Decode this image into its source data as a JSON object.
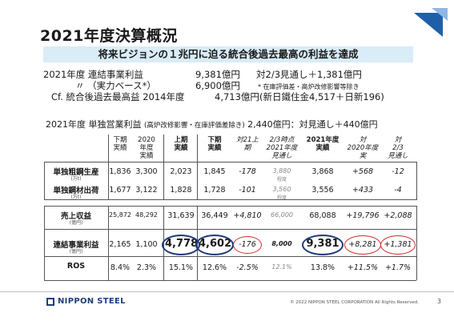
{
  "title": "2021年度決算概況",
  "banner": "将来ビジョンの１兆円に迫る統合後過去最高の利益を達成",
  "summary": {
    "row1": {
      "label": "2021年度 連結事業利益",
      "value": "9,381億円",
      "note": "対2/3見通し＋1,381億円"
    },
    "row2": {
      "label": "〃 （実力ベース*）",
      "value": "6,900億円",
      "note": "* 在庫評価差・高炉改修影響等除き"
    },
    "row3": {
      "label": "Cf. 統合後過去最高益 2014年度",
      "value": "4,713億円",
      "note": "(新日鐵住金4,517＋日新196)"
    }
  },
  "standalone": {
    "label": "2021年度 単独営業利益",
    "sub": "(高炉改修影響・在庫評価差除き)",
    "value": "2,440億円：対見通し＋440億円"
  },
  "table": {
    "headers": {
      "h1": [
        "下期",
        "実績"
      ],
      "h2": [
        "2020",
        "年度",
        "実績"
      ],
      "h3": [
        "上期",
        "実績"
      ],
      "h4": [
        "下期",
        "実績"
      ],
      "h5": [
        "対21上",
        "期"
      ],
      "h6": [
        "2/3時点",
        "2021年度",
        "見通し"
      ],
      "h7": [
        "2021年度",
        "実績"
      ],
      "h8": [
        "対",
        "2020年度",
        "実"
      ],
      "h9": [
        "対",
        "2/3",
        "見通し"
      ]
    },
    "rows": [
      {
        "label": "単独粗鋼生産",
        "unit": "(万t)",
        "values": [
          "1,836",
          "3,300",
          "2,023",
          "1,845",
          "-178",
          "3,880",
          "3,868",
          "+568",
          "-12"
        ],
        "extra": "程度"
      },
      {
        "label": "単独鋼材出荷",
        "unit": "(万t)",
        "values": [
          "1,677",
          "3,122",
          "1,828",
          "1,728",
          "-101",
          "3,560",
          "3,556",
          "+433",
          "-4"
        ],
        "extra": "程度"
      },
      {
        "label": "売上収益",
        "unit": "(億円)",
        "values": [
          "25,872",
          "48,292",
          "31,639",
          "36,449",
          "+4,810",
          "66,000",
          "68,088",
          "+19,796",
          "+2,088"
        ]
      },
      {
        "label": "連結事業利益",
        "unit": "(億円)",
        "values": [
          "2,165",
          "1,100",
          "4,778",
          "4,602",
          "-176",
          "8,000",
          "9,381",
          "+8,281",
          "+1,381"
        ]
      },
      {
        "label": "ROS",
        "unit": "",
        "values": [
          "8.4%",
          "2.3%",
          "15.1%",
          "12.6%",
          "-2.5%",
          "12.1%",
          "13.8%",
          "+11.5%",
          "+1.7%"
        ]
      }
    ]
  },
  "footer": {
    "logo": "NIPPON STEEL",
    "copyright": "© 2022 NIPPON STEEL CORPORATION All Rights Reserved.",
    "page": "3"
  },
  "colors": {
    "banner_bg": "#d9ecf7",
    "accent_blue": "#1f5faa",
    "circle_red": "#d12b2b",
    "circle_navy": "#1d3a7a"
  }
}
